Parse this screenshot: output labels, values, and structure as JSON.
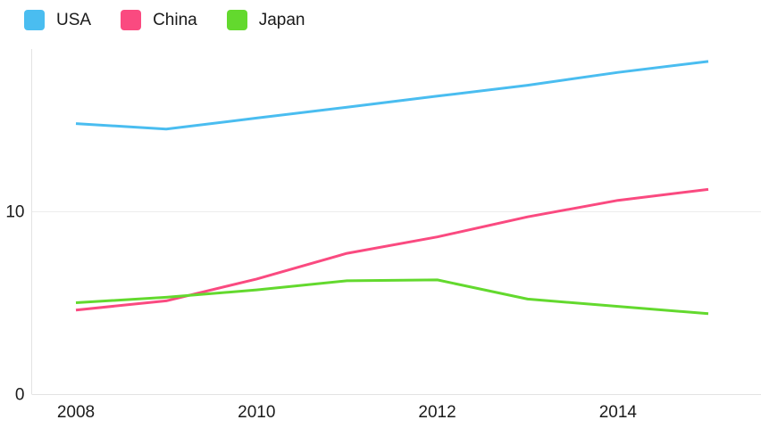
{
  "chart_data": {
    "type": "line",
    "title": "",
    "xlabel": "",
    "ylabel": "",
    "x": [
      2008,
      2009,
      2010,
      2011,
      2012,
      2013,
      2014,
      2015
    ],
    "series": [
      {
        "name": "USA",
        "color": "#4ABDF0",
        "values": [
          14.8,
          14.5,
          15.1,
          15.7,
          16.3,
          16.9,
          17.6,
          18.2
        ]
      },
      {
        "name": "China",
        "color": "#FA4A80",
        "values": [
          4.6,
          5.1,
          6.3,
          7.7,
          8.6,
          9.7,
          10.6,
          11.2
        ]
      },
      {
        "name": "Japan",
        "color": "#63D92E",
        "values": [
          5.0,
          5.3,
          5.7,
          6.2,
          6.25,
          5.2,
          4.8,
          4.4
        ]
      }
    ],
    "xticks": [
      "2008",
      "2010",
      "2012",
      "2014"
    ],
    "yticks": [
      0,
      10
    ],
    "ylim": [
      0,
      18.9
    ],
    "xlim": [
      2008,
      2015
    ],
    "legend_position": "top-left",
    "grid": "horizontal-only",
    "axis_color": "#e3e3e3",
    "grid_color": "#ededed",
    "text_color": "#1b1b1b",
    "line_width": 3
  }
}
